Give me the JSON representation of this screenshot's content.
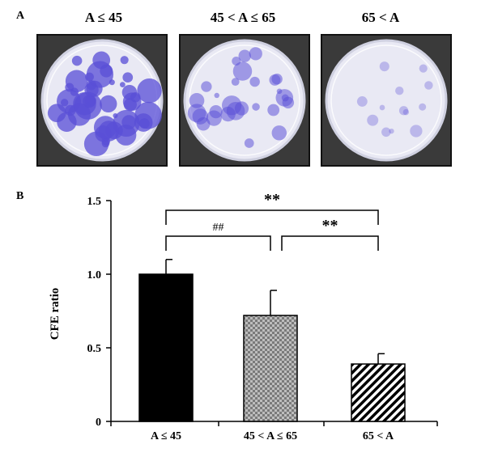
{
  "panel_a": {
    "label": "A",
    "groups": [
      {
        "title": "A ≤ 45",
        "stain_level": 0.85
      },
      {
        "title": "45 < A ≤ 65",
        "stain_level": 0.45
      },
      {
        "title": "65 < A",
        "stain_level": 0.12
      }
    ]
  },
  "colors": {
    "stain": "#5a4fd6",
    "dish_bg": "#e9e9f4",
    "frame": "#111111"
  },
  "chart_data": {
    "type": "bar",
    "panel_label": "B",
    "categories": [
      "A ≤ 45",
      "45 < A ≤ 65",
      "65 < A"
    ],
    "values": [
      1.0,
      0.72,
      0.39
    ],
    "errors": [
      0.1,
      0.17,
      0.07
    ],
    "fills": [
      "solid-black",
      "checkerboard-gray",
      "diagonal-hatch"
    ],
    "ylabel": "CFE ratio",
    "ylim": [
      0,
      1.5
    ],
    "yticks": [
      "0",
      "0.5",
      "1.0",
      "1.5"
    ],
    "ytick_values": [
      0,
      0.5,
      1.0,
      1.5
    ],
    "grid": false,
    "annotations": [
      {
        "text": "##",
        "from": 0,
        "to": 1
      },
      {
        "text": "**",
        "from": 1,
        "to": 2
      },
      {
        "text": "**",
        "from": 0,
        "to": 2
      }
    ]
  }
}
